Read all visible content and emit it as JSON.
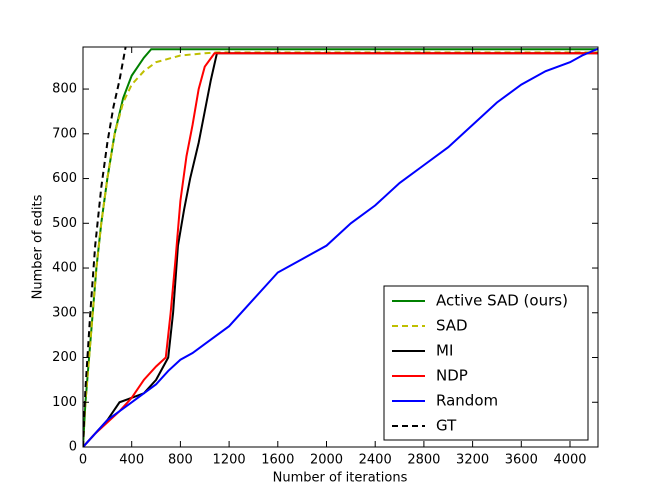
{
  "chart_data": {
    "type": "line",
    "x_label": "Number of iterations",
    "y_label": "Number of edits",
    "xlim": [
      0,
      4230
    ],
    "ylim": [
      0,
      894
    ],
    "xticks": [
      0,
      400,
      800,
      1200,
      1600,
      2000,
      2400,
      2800,
      3200,
      3600,
      4000
    ],
    "yticks": [
      0,
      100,
      200,
      300,
      400,
      500,
      600,
      700,
      800
    ],
    "legend": "lower right",
    "series": [
      {
        "name": "Active SAD (ours)",
        "color": "#008000",
        "dashed": false,
        "x": [
          0,
          20,
          50,
          80,
          110,
          150,
          200,
          260,
          330,
          400,
          450,
          500,
          560,
          4230
        ],
        "values": [
          0,
          100,
          200,
          300,
          400,
          500,
          600,
          700,
          780,
          830,
          850,
          870,
          889,
          889
        ]
      },
      {
        "name": "SAD",
        "color": "#bfbf00",
        "dashed": true,
        "x": [
          0,
          20,
          50,
          80,
          110,
          150,
          200,
          260,
          330,
          400,
          500,
          600,
          800,
          1000,
          1100,
          4230
        ],
        "values": [
          0,
          100,
          200,
          300,
          400,
          500,
          600,
          700,
          770,
          810,
          840,
          860,
          875,
          880,
          882,
          882
        ]
      },
      {
        "name": "MI",
        "color": "#000000",
        "dashed": false,
        "x": [
          0,
          100,
          200,
          300,
          400,
          500,
          600,
          700,
          740,
          780,
          830,
          880,
          950,
          1000,
          1050,
          1100,
          4230
        ],
        "values": [
          0,
          30,
          60,
          100,
          110,
          120,
          150,
          200,
          300,
          450,
          530,
          600,
          680,
          750,
          820,
          880,
          880
        ]
      },
      {
        "name": "NDP",
        "color": "#ff0000",
        "dashed": false,
        "x": [
          0,
          100,
          200,
          300,
          400,
          500,
          600,
          680,
          720,
          760,
          800,
          850,
          900,
          950,
          1000,
          1080,
          4230
        ],
        "values": [
          0,
          30,
          55,
          80,
          110,
          150,
          180,
          200,
          300,
          420,
          550,
          650,
          720,
          800,
          850,
          880,
          880
        ]
      },
      {
        "name": "Random",
        "color": "#0000ff",
        "dashed": false,
        "x": [
          0,
          100,
          200,
          300,
          400,
          500,
          600,
          700,
          800,
          900,
          1000,
          1200,
          1400,
          1600,
          1800,
          2000,
          2200,
          2400,
          2600,
          2800,
          3000,
          3200,
          3400,
          3600,
          3800,
          4000,
          4100,
          4230
        ],
        "values": [
          0,
          30,
          60,
          80,
          100,
          120,
          140,
          170,
          195,
          210,
          230,
          270,
          330,
          390,
          420,
          450,
          500,
          540,
          590,
          630,
          670,
          720,
          770,
          810,
          840,
          860,
          875,
          890
        ]
      },
      {
        "name": "GT",
        "color": "#000000",
        "dashed": true,
        "x": [
          0,
          20,
          60,
          100,
          150,
          200,
          250,
          300,
          350
        ],
        "values": [
          0,
          130,
          300,
          450,
          580,
          680,
          760,
          820,
          894
        ]
      }
    ]
  }
}
